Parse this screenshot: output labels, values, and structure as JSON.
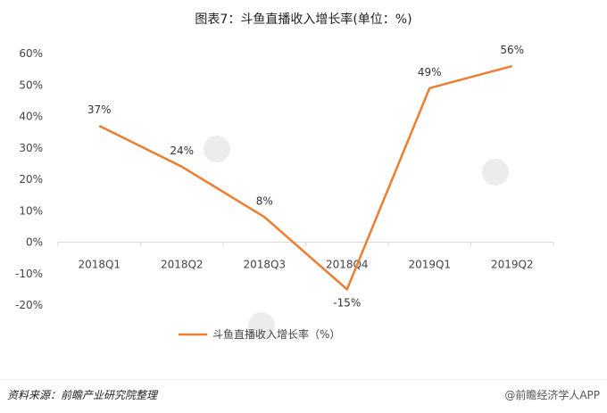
{
  "chart_data": {
    "type": "line",
    "title": "图表7：斗鱼直播收入增长率(单位：%)",
    "categories": [
      "2018Q1",
      "2018Q2",
      "2018Q3",
      "2018Q4",
      "2019Q1",
      "2019Q2"
    ],
    "series": [
      {
        "name": "斗鱼直播收入增长率（%）",
        "values": [
          37,
          24,
          8,
          -15,
          49,
          56
        ],
        "data_labels": [
          "37%",
          "24%",
          "8%",
          "-15%",
          "49%",
          "56%"
        ],
        "color": "#ED7D31"
      }
    ],
    "yticks": [
      "60%",
      "50%",
      "40%",
      "30%",
      "20%",
      "10%",
      "0%",
      "-10%",
      "-20%"
    ],
    "ylim": [
      -20,
      60
    ],
    "grid": false,
    "legend": "bottom-center"
  },
  "footer": {
    "source": "资料来源：前瞻产业研究院整理",
    "credit": "@前瞻经济学人APP"
  }
}
